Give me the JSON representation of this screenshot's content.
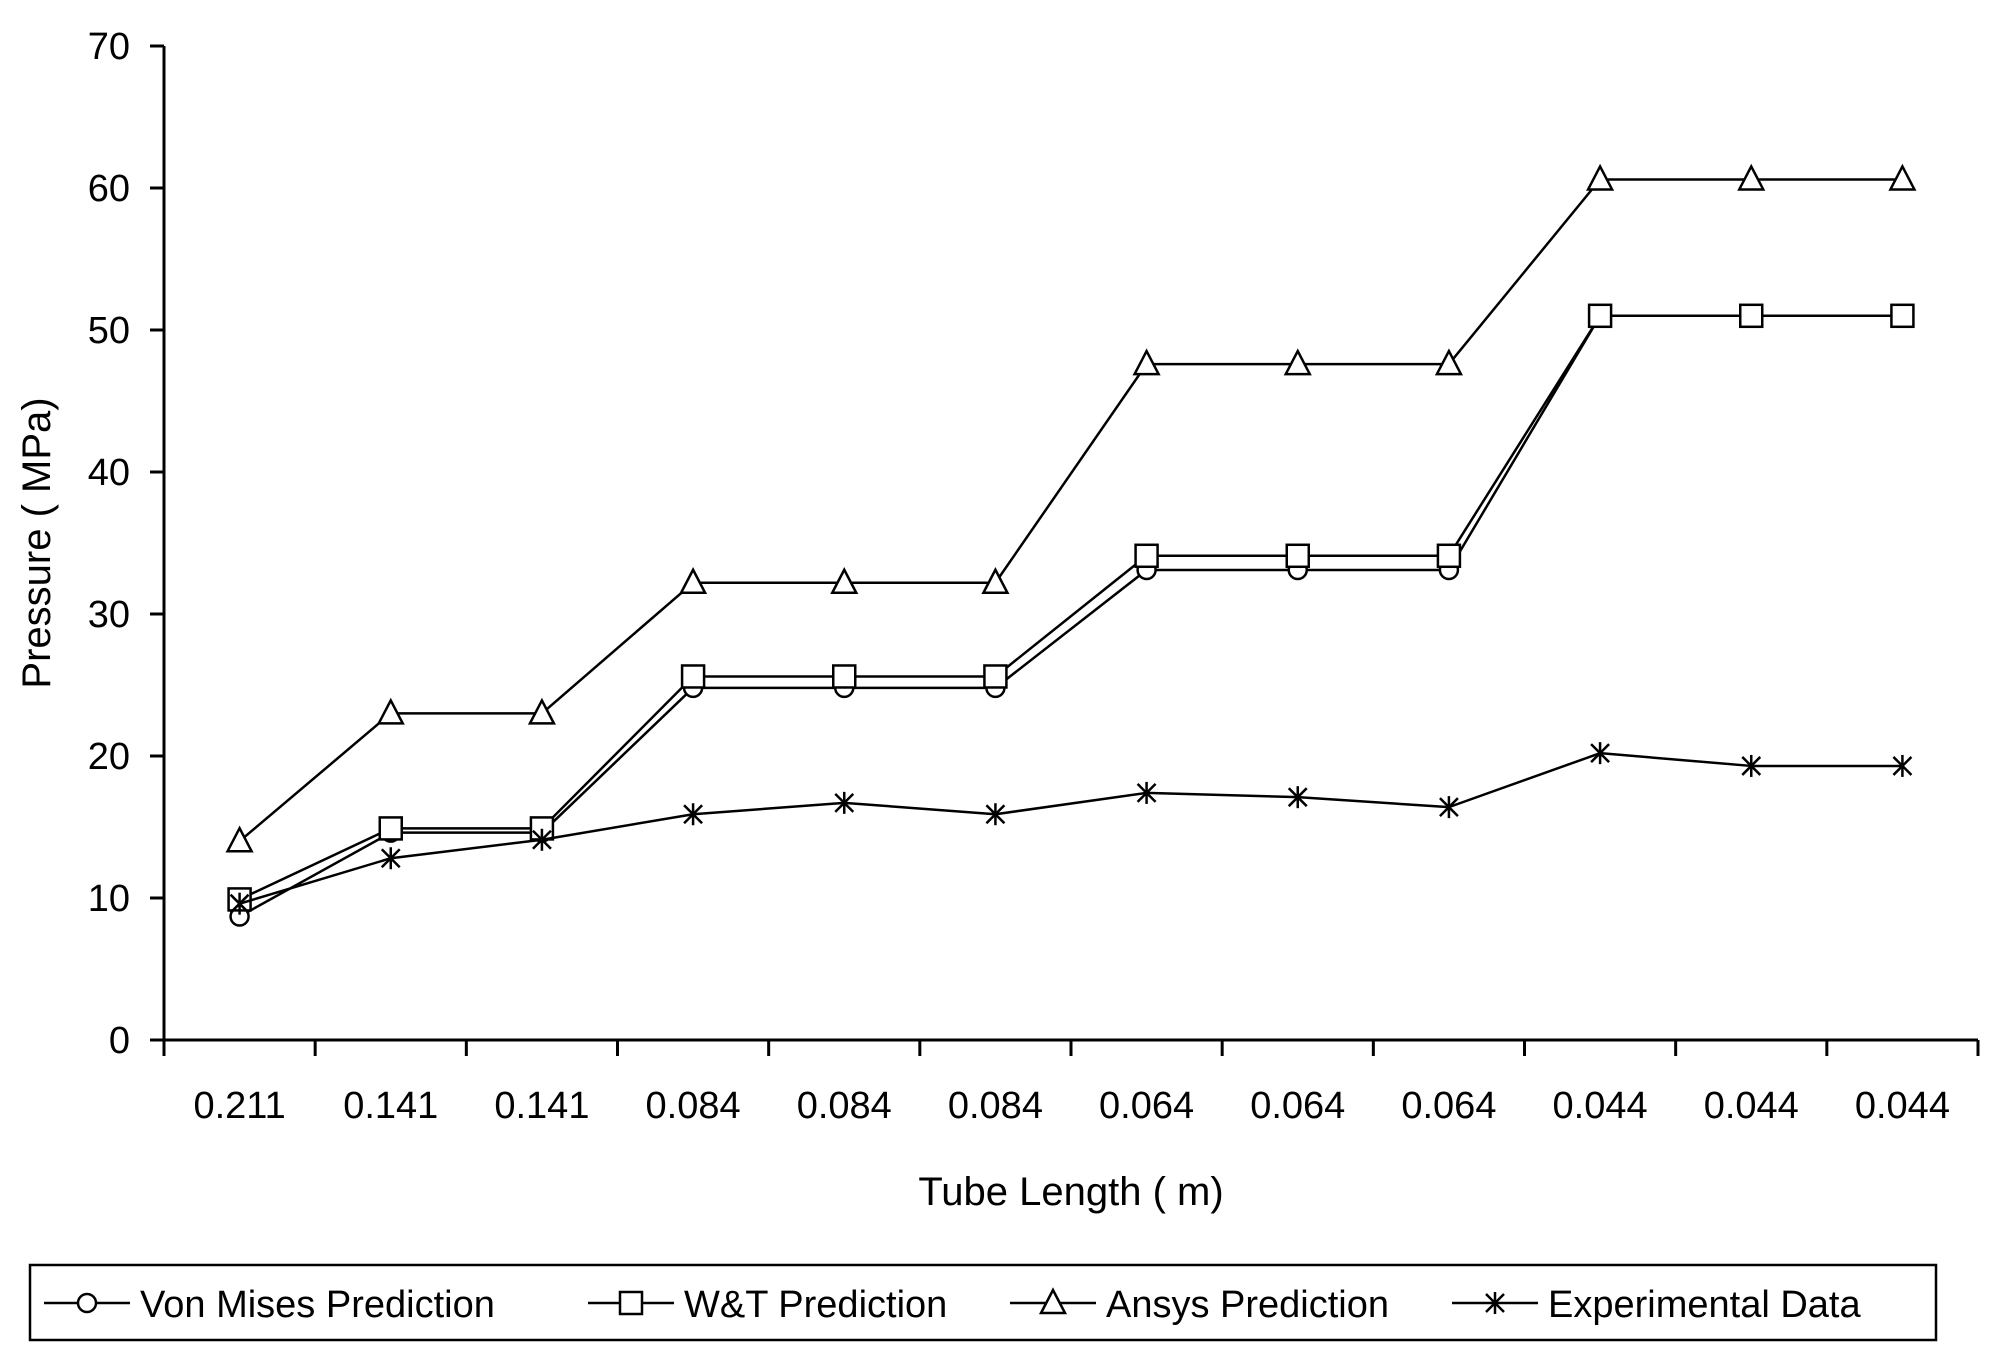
{
  "chart_data": {
    "type": "line",
    "xlabel": "Tube Length ( m)",
    "ylabel": "Pressure ( MPa)",
    "ylim": [
      0,
      70
    ],
    "yticks": [
      0,
      10,
      20,
      30,
      40,
      50,
      60,
      70
    ],
    "categories": [
      "0.211",
      "0.141",
      "0.141",
      "0.084",
      "0.084",
      "0.084",
      "0.064",
      "0.064",
      "0.064",
      "0.044",
      "0.044",
      "0.044"
    ],
    "grid": false,
    "legend_position": "bottom",
    "series": [
      {
        "name": "Von Mises Prediction",
        "marker": "circle",
        "values": [
          8.7,
          14.6,
          14.6,
          24.8,
          24.8,
          24.8,
          33.1,
          33.1,
          33.1,
          51.0,
          51.0,
          51.0
        ]
      },
      {
        "name": "W&T Prediction",
        "marker": "square",
        "values": [
          9.9,
          14.9,
          14.9,
          25.6,
          25.6,
          25.6,
          34.1,
          34.1,
          34.1,
          51.0,
          51.0,
          51.0
        ]
      },
      {
        "name": "Ansys Prediction",
        "marker": "triangle",
        "values": [
          14.0,
          23.0,
          23.0,
          32.2,
          32.2,
          32.2,
          47.6,
          47.6,
          47.6,
          60.6,
          60.6,
          60.6
        ]
      },
      {
        "name": "Experimental Data",
        "marker": "star",
        "values": [
          9.6,
          12.8,
          14.1,
          15.9,
          16.7,
          15.9,
          17.4,
          17.1,
          16.4,
          20.2,
          19.3,
          19.3
        ]
      }
    ]
  }
}
